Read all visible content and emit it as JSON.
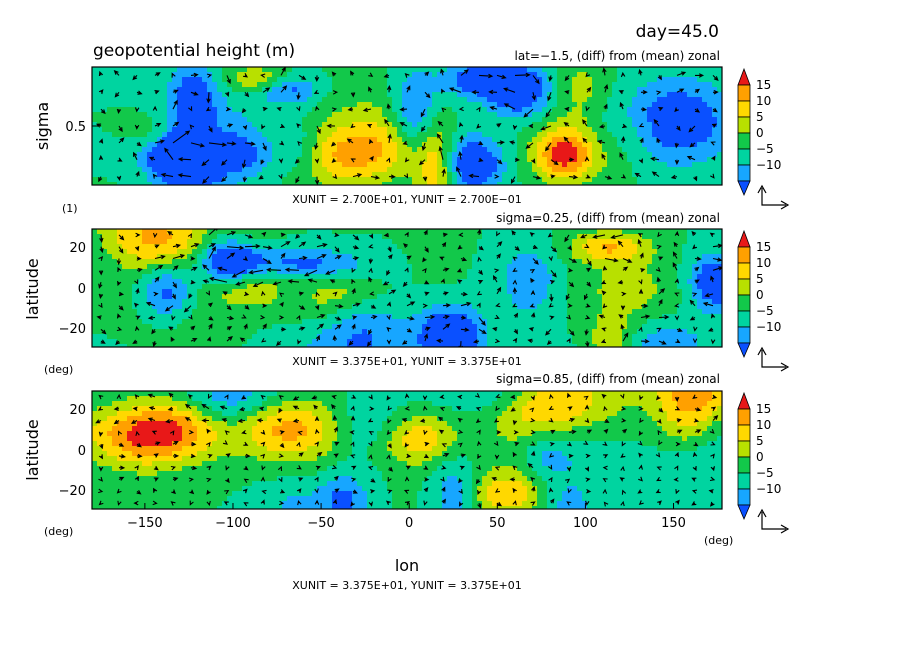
{
  "figure": {
    "day_label": "day=45.0",
    "title": "geopotential height (m)"
  },
  "colorbar": {
    "labels": [
      "15",
      "10",
      "5",
      "0",
      "−5",
      "−10"
    ],
    "colors": [
      "#0a50ff",
      "#17a6ff",
      "#00d4a0",
      "#12c84a",
      "#b8e000",
      "#ffd800",
      "#ffa000",
      "#e81818"
    ]
  },
  "chart_data": [
    {
      "type": "heatmap",
      "subtitle": "lat=−1.5, (diff) from (mean) zonal",
      "ylabel": "sigma",
      "yunit": "(1)",
      "yticks": [
        "0.5"
      ],
      "unit_text": "XUNIT = 2.700E+01, YUNIT = 2.700E−01",
      "value_range": [
        -15,
        20
      ],
      "arrows": "reference vectors",
      "seed": 17
    },
    {
      "type": "heatmap",
      "subtitle": "sigma=0.25, (diff) from (mean) zonal",
      "ylabel": "latitude",
      "yunit": "(deg)",
      "yticks": [
        "20",
        "0",
        "−20"
      ],
      "unit_text": "XUNIT = 3.375E+01, YUNIT = 3.375E+01",
      "value_range": [
        -15,
        20
      ],
      "seed": 42
    },
    {
      "type": "heatmap",
      "subtitle": "sigma=0.85, (diff) from (mean) zonal",
      "ylabel": "latitude",
      "yunit": "(deg)",
      "yticks": [
        "20",
        "0",
        "−20"
      ],
      "xlabel": "lon",
      "xunit": "(deg)",
      "xticks": [
        "−150",
        "−100",
        "−50",
        "0",
        "50",
        "100",
        "150"
      ],
      "unit_text": "XUNIT = 3.375E+01, YUNIT = 3.375E+01",
      "value_range": [
        -15,
        20
      ],
      "seed": 99
    }
  ]
}
